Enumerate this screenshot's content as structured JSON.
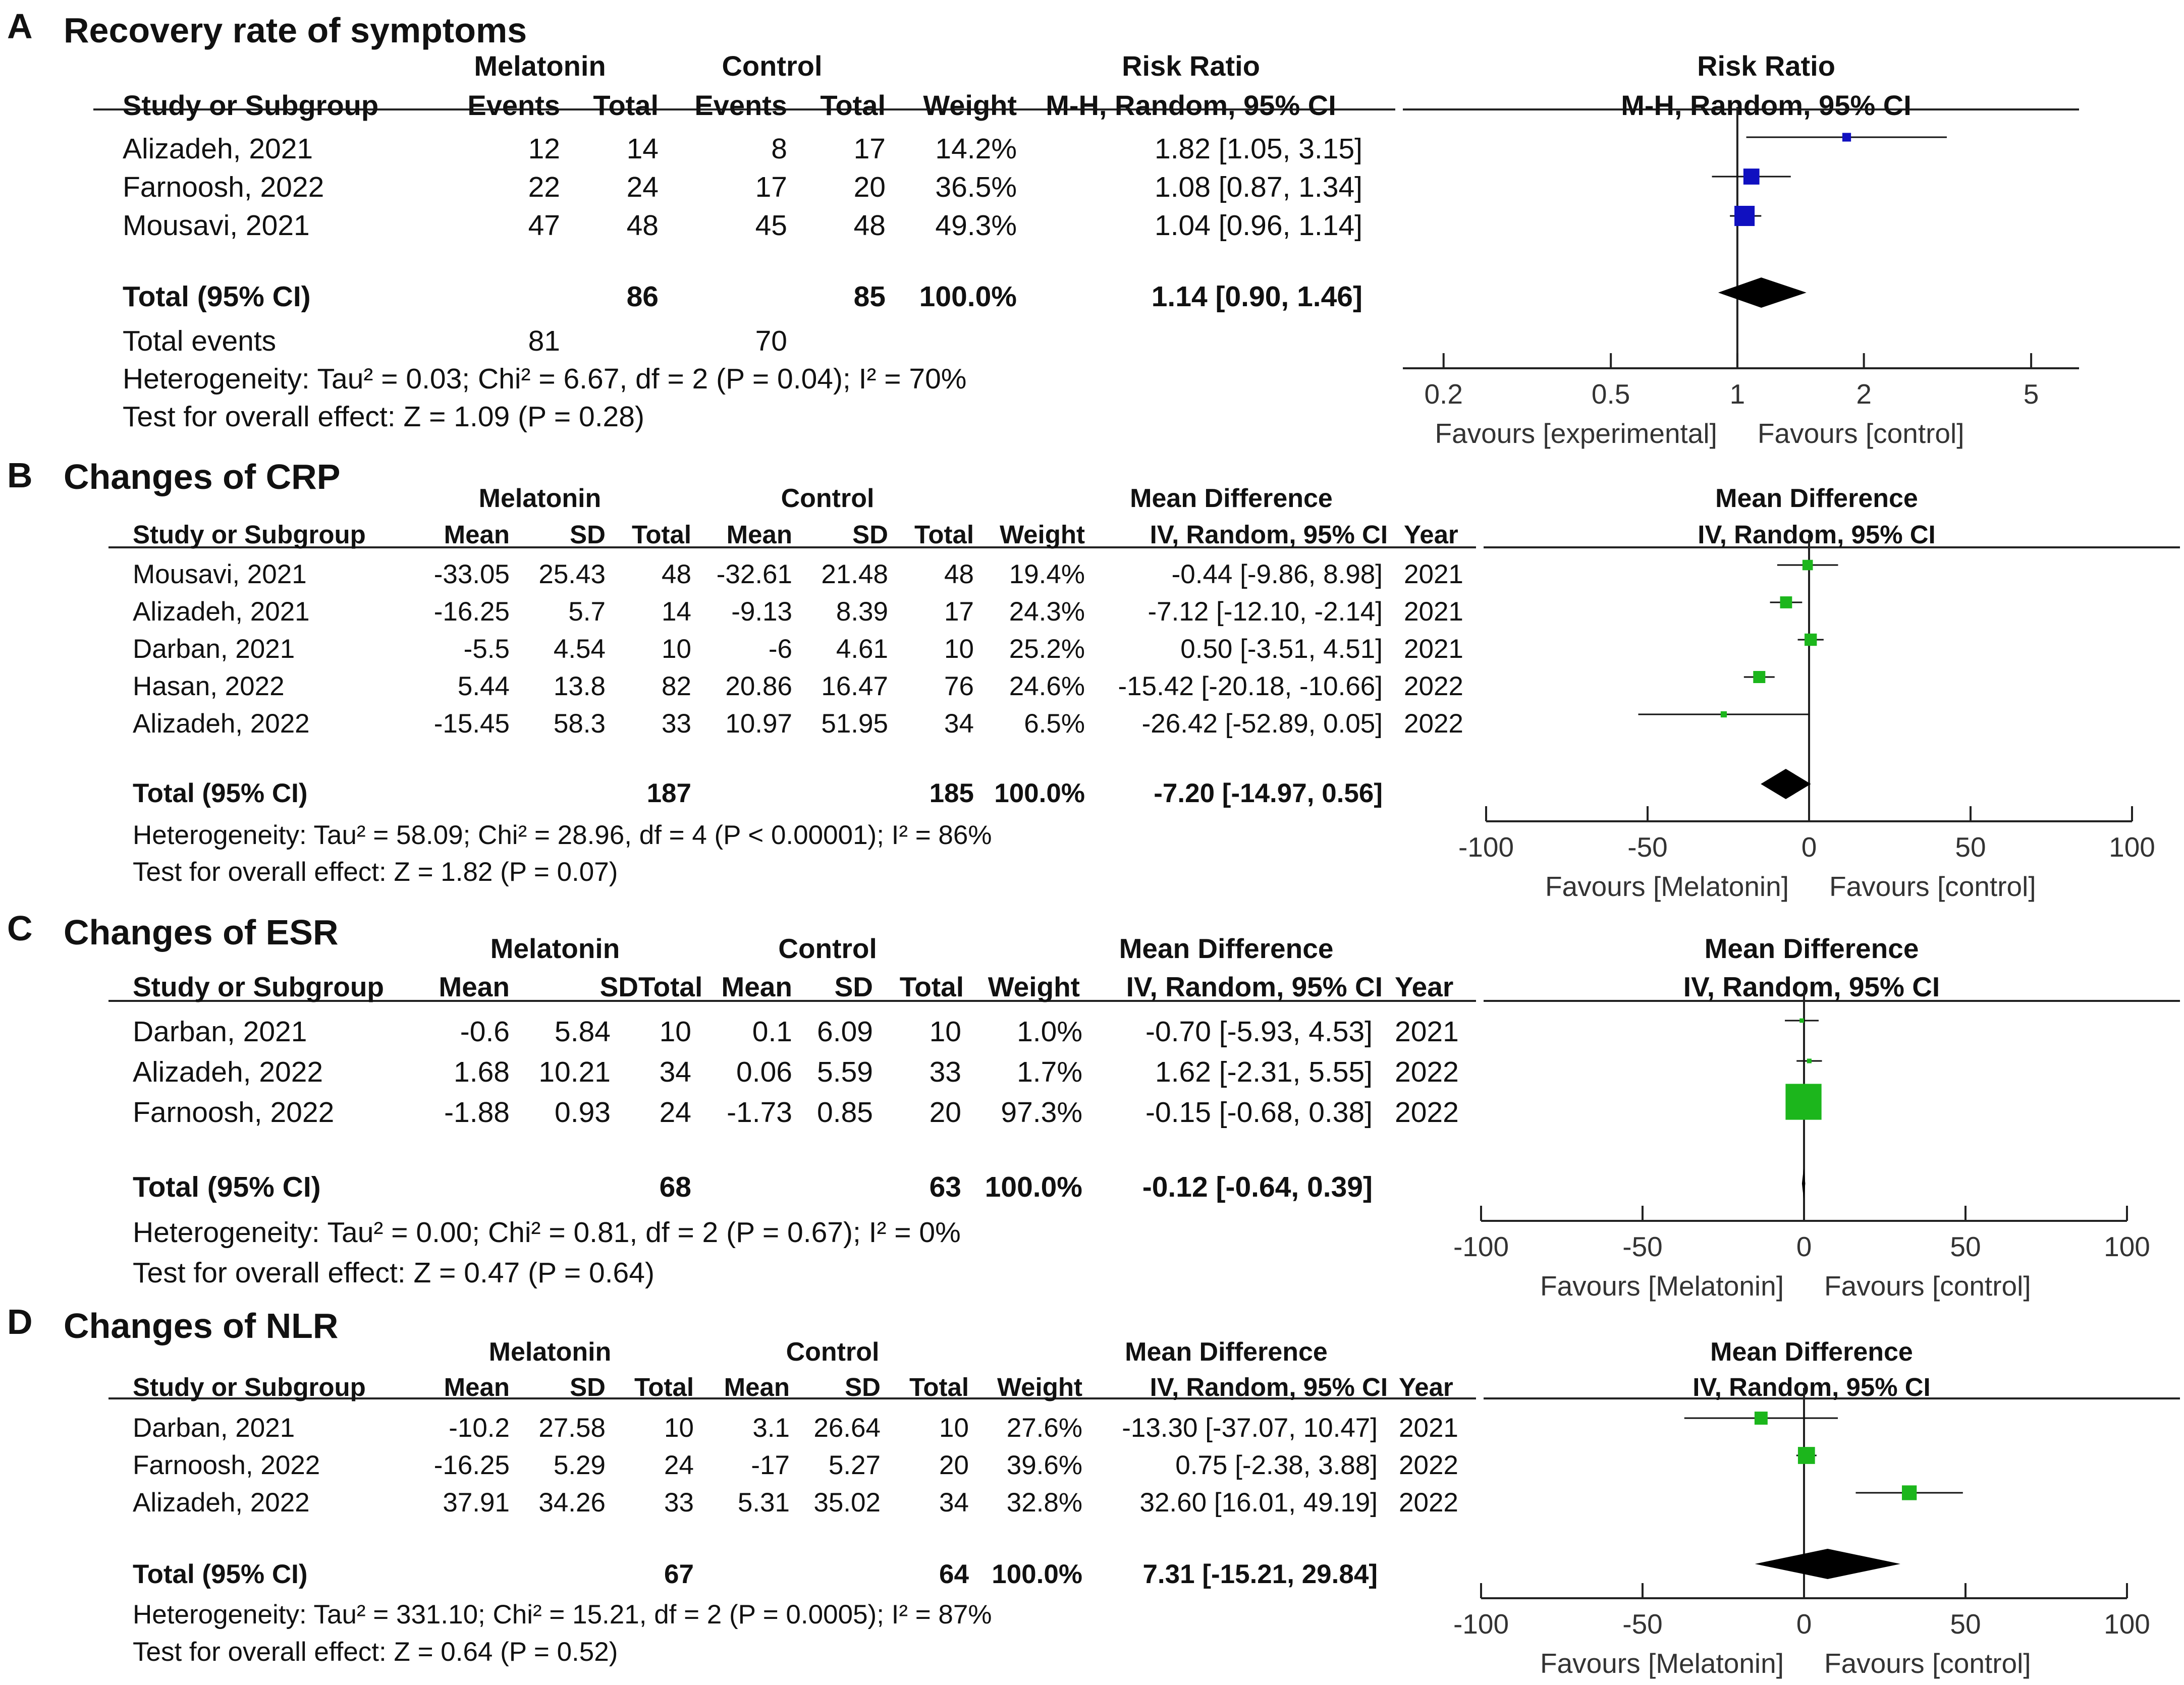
{
  "chart_data": [
    {
      "type": "forest",
      "panel": "A",
      "title": "Recovery rate of symptoms",
      "group_headers": {
        "experimental": "Melatonin",
        "control": "Control"
      },
      "effect_header": "Risk Ratio",
      "method": "M-H, Random, 95% CI",
      "columns": [
        "Study or Subgroup",
        "Events",
        "Total",
        "Events",
        "Total",
        "Weight",
        "M-H, Random, 95% CI"
      ],
      "studies": [
        {
          "name": "Alizadeh, 2021",
          "exp_events": "12",
          "exp_total": "14",
          "ctl_events": "8",
          "ctl_total": "17",
          "weight": "14.2%",
          "ci_text": "1.82 [1.05, 3.15]",
          "est": 1.82,
          "lo": 1.05,
          "hi": 3.15,
          "w": 14.2
        },
        {
          "name": "Farnoosh, 2022",
          "exp_events": "22",
          "exp_total": "24",
          "ctl_events": "17",
          "ctl_total": "20",
          "weight": "36.5%",
          "ci_text": "1.08 [0.87, 1.34]",
          "est": 1.08,
          "lo": 0.87,
          "hi": 1.34,
          "w": 36.5
        },
        {
          "name": "Mousavi, 2021",
          "exp_events": "47",
          "exp_total": "48",
          "ctl_events": "45",
          "ctl_total": "48",
          "weight": "49.3%",
          "ci_text": "1.04 [0.96, 1.14]",
          "est": 1.04,
          "lo": 0.96,
          "hi": 1.14,
          "w": 49.3
        }
      ],
      "total": {
        "label": "Total (95% CI)",
        "exp_total": "86",
        "ctl_total": "85",
        "weight": "100.0%",
        "ci_text": "1.14 [0.90, 1.46]",
        "est": 1.14,
        "lo": 0.9,
        "hi": 1.46
      },
      "total_events": {
        "label": "Total events",
        "exp": "81",
        "ctl": "70"
      },
      "heterogeneity": "Heterogeneity: Tau² = 0.03; Chi² = 6.67, df = 2 (P = 0.04); I² = 70%",
      "overall_effect": "Test for overall effect: Z = 1.09 (P = 0.28)",
      "scale": "log",
      "xlim": [
        0.16,
        6.5
      ],
      "ticks": [
        {
          "v": 0.2,
          "label": "0.2"
        },
        {
          "v": 0.5,
          "label": "0.5"
        },
        {
          "v": 1,
          "label": "1"
        },
        {
          "v": 2,
          "label": "2"
        },
        {
          "v": 5,
          "label": "5"
        }
      ],
      "favours_left": "Favours [experimental]",
      "favours_right": "Favours [control]",
      "square_color": "#1010c0"
    },
    {
      "type": "forest",
      "panel": "B",
      "title": "Changes of CRP",
      "group_headers": {
        "experimental": "Melatonin",
        "control": "Control"
      },
      "effect_header": "Mean Difference",
      "method": "IV, Random, 95% CI",
      "columns": [
        "Study or Subgroup",
        "Mean",
        "SD",
        "Total",
        "Mean",
        "SD",
        "Total",
        "Weight",
        "IV, Random, 95% CI",
        "Year"
      ],
      "studies": [
        {
          "name": "Mousavi, 2021",
          "exp_mean": "-33.05",
          "exp_sd": "25.43",
          "exp_total": "48",
          "ctl_mean": "-32.61",
          "ctl_sd": "21.48",
          "ctl_total": "48",
          "weight": "19.4%",
          "ci_text": "-0.44 [-9.86, 8.98]",
          "year": "2021",
          "est": -0.44,
          "lo": -9.86,
          "hi": 8.98,
          "w": 19.4
        },
        {
          "name": "Alizadeh, 2021",
          "exp_mean": "-16.25",
          "exp_sd": "5.7",
          "exp_total": "14",
          "ctl_mean": "-9.13",
          "ctl_sd": "8.39",
          "ctl_total": "17",
          "weight": "24.3%",
          "ci_text": "-7.12 [-12.10, -2.14]",
          "year": "2021",
          "est": -7.12,
          "lo": -12.1,
          "hi": -2.14,
          "w": 24.3
        },
        {
          "name": "Darban, 2021",
          "exp_mean": "-5.5",
          "exp_sd": "4.54",
          "exp_total": "10",
          "ctl_mean": "-6",
          "ctl_sd": "4.61",
          "ctl_total": "10",
          "weight": "25.2%",
          "ci_text": "0.50 [-3.51, 4.51]",
          "year": "2021",
          "est": 0.5,
          "lo": -3.51,
          "hi": 4.51,
          "w": 25.2
        },
        {
          "name": "Hasan, 2022",
          "exp_mean": "5.44",
          "exp_sd": "13.8",
          "exp_total": "82",
          "ctl_mean": "20.86",
          "ctl_sd": "16.47",
          "ctl_total": "76",
          "weight": "24.6%",
          "ci_text": "-15.42 [-20.18, -10.66]",
          "year": "2022",
          "est": -15.42,
          "lo": -20.18,
          "hi": -10.66,
          "w": 24.6
        },
        {
          "name": "Alizadeh, 2022",
          "exp_mean": "-15.45",
          "exp_sd": "58.3",
          "exp_total": "33",
          "ctl_mean": "10.97",
          "ctl_sd": "51.95",
          "ctl_total": "34",
          "weight": "6.5%",
          "ci_text": "-26.42 [-52.89, 0.05]",
          "year": "2022",
          "est": -26.42,
          "lo": -52.89,
          "hi": 0.05,
          "w": 6.5
        }
      ],
      "total": {
        "label": "Total (95% CI)",
        "exp_total": "187",
        "ctl_total": "185",
        "weight": "100.0%",
        "ci_text": "-7.20 [-14.97, 0.56]",
        "est": -7.2,
        "lo": -14.97,
        "hi": 0.56
      },
      "heterogeneity": "Heterogeneity: Tau² = 58.09; Chi² = 28.96, df = 4 (P < 0.00001); I² = 86%",
      "overall_effect": "Test for overall effect: Z = 1.82 (P = 0.07)",
      "scale": "linear",
      "xlim": [
        -100,
        100
      ],
      "ticks": [
        {
          "v": -100,
          "label": "-100"
        },
        {
          "v": -50,
          "label": "-50"
        },
        {
          "v": 0,
          "label": "0"
        },
        {
          "v": 50,
          "label": "50"
        },
        {
          "v": 100,
          "label": "100"
        }
      ],
      "favours_left": "Favours [Melatonin]",
      "favours_right": "Favours [control]",
      "square_color": "#1cb61c"
    },
    {
      "type": "forest",
      "panel": "C",
      "title": "Changes of ESR",
      "group_headers": {
        "experimental": "Melatonin",
        "control": "Control"
      },
      "effect_header": "Mean Difference",
      "method": "IV, Random, 95% CI",
      "columns": [
        "Study or Subgroup",
        "Mean",
        "SD",
        "Total",
        "Mean",
        "SD",
        "Total",
        "Weight",
        "IV, Random, 95% CI",
        "Year"
      ],
      "studies": [
        {
          "name": "Darban, 2021",
          "exp_mean": "-0.6",
          "exp_sd": "5.84",
          "exp_total": "10",
          "ctl_mean": "0.1",
          "ctl_sd": "6.09",
          "ctl_total": "10",
          "weight": "1.0%",
          "ci_text": "-0.70 [-5.93, 4.53]",
          "year": "2021",
          "est": -0.7,
          "lo": -5.93,
          "hi": 4.53,
          "w": 1.0
        },
        {
          "name": "Alizadeh, 2022",
          "exp_mean": "1.68",
          "exp_sd": "10.21",
          "exp_total": "34",
          "ctl_mean": "0.06",
          "ctl_sd": "5.59",
          "ctl_total": "33",
          "weight": "1.7%",
          "ci_text": "1.62 [-2.31, 5.55]",
          "year": "2022",
          "est": 1.62,
          "lo": -2.31,
          "hi": 5.55,
          "w": 1.7
        },
        {
          "name": "Farnoosh, 2022",
          "exp_mean": "-1.88",
          "exp_sd": "0.93",
          "exp_total": "24",
          "ctl_mean": "-1.73",
          "ctl_sd": "0.85",
          "ctl_total": "20",
          "weight": "97.3%",
          "ci_text": "-0.15 [-0.68, 0.38]",
          "year": "2022",
          "est": -0.15,
          "lo": -0.68,
          "hi": 0.38,
          "w": 97.3
        }
      ],
      "total": {
        "label": "Total (95% CI)",
        "exp_total": "68",
        "ctl_total": "63",
        "weight": "100.0%",
        "ci_text": "-0.12 [-0.64, 0.39]",
        "est": -0.12,
        "lo": -0.64,
        "hi": 0.39
      },
      "heterogeneity": "Heterogeneity: Tau² = 0.00; Chi² = 0.81, df = 2 (P = 0.67); I² = 0%",
      "overall_effect": "Test for overall effect: Z = 0.47 (P = 0.64)",
      "scale": "linear",
      "xlim": [
        -100,
        100
      ],
      "ticks": [
        {
          "v": -100,
          "label": "-100"
        },
        {
          "v": -50,
          "label": "-50"
        },
        {
          "v": 0,
          "label": "0"
        },
        {
          "v": 50,
          "label": "50"
        },
        {
          "v": 100,
          "label": "100"
        }
      ],
      "favours_left": "Favours [Melatonin]",
      "favours_right": "Favours [control]",
      "square_color": "#1cb61c"
    },
    {
      "type": "forest",
      "panel": "D",
      "title": "Changes of NLR",
      "group_headers": {
        "experimental": "Melatonin",
        "control": "Control"
      },
      "effect_header": "Mean Difference",
      "method": "IV, Random, 95% CI",
      "columns": [
        "Study or Subgroup",
        "Mean",
        "SD",
        "Total",
        "Mean",
        "SD",
        "Total",
        "Weight",
        "IV, Random, 95% CI",
        "Year"
      ],
      "studies": [
        {
          "name": "Darban, 2021",
          "exp_mean": "-10.2",
          "exp_sd": "27.58",
          "exp_total": "10",
          "ctl_mean": "3.1",
          "ctl_sd": "26.64",
          "ctl_total": "10",
          "weight": "27.6%",
          "ci_text": "-13.30 [-37.07, 10.47]",
          "year": "2021",
          "est": -13.3,
          "lo": -37.07,
          "hi": 10.47,
          "w": 27.6
        },
        {
          "name": "Farnoosh, 2022",
          "exp_mean": "-16.25",
          "exp_sd": "5.29",
          "exp_total": "24",
          "ctl_mean": "-17",
          "ctl_sd": "5.27",
          "ctl_total": "20",
          "weight": "39.6%",
          "ci_text": "0.75 [-2.38, 3.88]",
          "year": "2022",
          "est": 0.75,
          "lo": -2.38,
          "hi": 3.88,
          "w": 39.6
        },
        {
          "name": "Alizadeh, 2022",
          "exp_mean": "37.91",
          "exp_sd": "34.26",
          "exp_total": "33",
          "ctl_mean": "5.31",
          "ctl_sd": "35.02",
          "ctl_total": "34",
          "weight": "32.8%",
          "ci_text": "32.60 [16.01, 49.19]",
          "year": "2022",
          "est": 32.6,
          "lo": 16.01,
          "hi": 49.19,
          "w": 32.8
        }
      ],
      "total": {
        "label": "Total (95% CI)",
        "exp_total": "67",
        "ctl_total": "64",
        "weight": "100.0%",
        "ci_text": "7.31 [-15.21, 29.84]",
        "est": 7.31,
        "lo": -15.21,
        "hi": 29.84
      },
      "heterogeneity": "Heterogeneity: Tau² = 331.10; Chi² = 15.21, df = 2 (P = 0.0005); I² = 87%",
      "overall_effect": "Test for overall effect: Z = 0.64 (P = 0.52)",
      "scale": "linear",
      "xlim": [
        -100,
        100
      ],
      "ticks": [
        {
          "v": -100,
          "label": "-100"
        },
        {
          "v": -50,
          "label": "-50"
        },
        {
          "v": 0,
          "label": "0"
        },
        {
          "v": 50,
          "label": "50"
        },
        {
          "v": 100,
          "label": "100"
        }
      ],
      "favours_left": "Favours [Melatonin]",
      "favours_right": "Favours [control]",
      "square_color": "#1cb61c"
    }
  ]
}
